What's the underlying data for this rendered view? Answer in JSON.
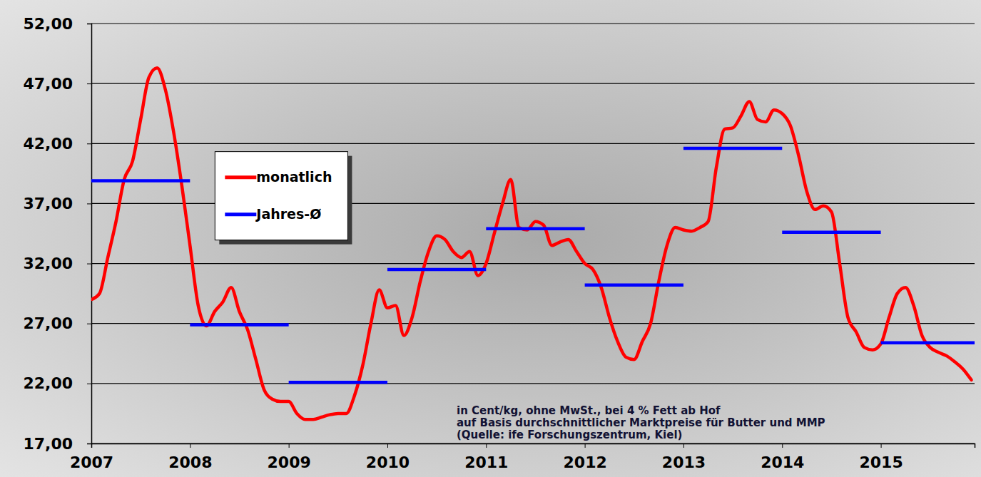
{
  "chart_data": {
    "type": "line",
    "annotations": [
      "in Cent/kg, ohne MwSt., bei 4 % Fett ab Hof",
      "auf Basis durchschnittlicher Marktpreise für Butter und MMP",
      "(Quelle: ife Forschungszentrum,  Kiel)"
    ],
    "xlim": [
      2007,
      2015.95
    ],
    "xticks": [
      2007,
      2008,
      2009,
      2010,
      2011,
      2012,
      2013,
      2014,
      2015
    ],
    "ylim": [
      17,
      52
    ],
    "yticks": [
      {
        "value": 17,
        "label": "17,00"
      },
      {
        "value": 22,
        "label": "22,00"
      },
      {
        "value": 27,
        "label": "27,00"
      },
      {
        "value": 32,
        "label": "32,00"
      },
      {
        "value": 37,
        "label": "37,00"
      },
      {
        "value": 42,
        "label": "42,00"
      },
      {
        "value": 47,
        "label": "47,00"
      },
      {
        "value": 52,
        "label": "52,00"
      }
    ],
    "grid": true,
    "legend": "upper left",
    "series": [
      {
        "name": "monatlich",
        "color": "#ff0000",
        "x": [
          2007,
          2007.083,
          2007.167,
          2007.25,
          2007.333,
          2007.417,
          2007.5,
          2007.583,
          2007.667,
          2007.75,
          2007.833,
          2007.917,
          2008,
          2008.083,
          2008.167,
          2008.25,
          2008.333,
          2008.417,
          2008.5,
          2008.583,
          2008.667,
          2008.75,
          2008.833,
          2008.917,
          2009,
          2009.083,
          2009.167,
          2009.25,
          2009.333,
          2009.417,
          2009.5,
          2009.583,
          2009.667,
          2009.75,
          2009.833,
          2009.917,
          2010,
          2010.083,
          2010.167,
          2010.25,
          2010.333,
          2010.417,
          2010.5,
          2010.583,
          2010.667,
          2010.75,
          2010.833,
          2010.917,
          2011,
          2011.083,
          2011.167,
          2011.25,
          2011.333,
          2011.417,
          2011.5,
          2011.583,
          2011.667,
          2011.75,
          2011.833,
          2011.917,
          2012,
          2012.083,
          2012.167,
          2012.25,
          2012.333,
          2012.417,
          2012.5,
          2012.583,
          2012.667,
          2012.75,
          2012.833,
          2012.917,
          2013,
          2013.083,
          2013.167,
          2013.25,
          2013.333,
          2013.417,
          2013.5,
          2013.583,
          2013.667,
          2013.75,
          2013.833,
          2013.917,
          2014,
          2014.083,
          2014.167,
          2014.25,
          2014.333,
          2014.417,
          2014.5,
          2014.583,
          2014.667,
          2014.75,
          2014.833,
          2014.917,
          2015,
          2015.083,
          2015.167,
          2015.25,
          2015.333,
          2015.417,
          2015.5,
          2015.583,
          2015.667,
          2015.75,
          2015.833,
          2015.917
        ],
        "values": [
          29.0,
          29.5,
          32.5,
          35.5,
          39.0,
          40.5,
          44.0,
          47.5,
          48.3,
          46.5,
          43.0,
          38.5,
          33.5,
          28.5,
          26.8,
          28.0,
          28.8,
          30.0,
          28.0,
          26.5,
          24.0,
          21.5,
          20.7,
          20.5,
          20.5,
          19.5,
          19.0,
          19.0,
          19.2,
          19.4,
          19.5,
          19.5,
          21.0,
          23.5,
          27.0,
          29.8,
          28.3,
          28.5,
          26.0,
          27.5,
          30.5,
          33.0,
          34.3,
          34.0,
          33.0,
          32.5,
          33.0,
          31.0,
          32.0,
          34.5,
          37.0,
          39.0,
          35.0,
          34.8,
          35.5,
          35.2,
          33.5,
          33.8,
          34.0,
          33.0,
          32.0,
          31.5,
          30.0,
          27.5,
          25.5,
          24.2,
          24.0,
          25.5,
          27.0,
          30.5,
          33.5,
          35.0,
          34.8,
          34.7,
          35.0,
          35.5,
          40.0,
          43.2,
          43.3,
          44.3,
          45.5,
          44.0,
          43.8,
          44.8,
          44.5,
          43.5,
          41.0,
          38.0,
          36.5,
          36.8,
          36.3,
          32.0,
          27.5,
          26.3,
          25.0,
          24.8,
          25.3,
          27.5,
          29.5,
          30.0,
          28.5,
          26.0,
          25.0,
          24.6,
          24.3,
          23.8,
          23.2,
          22.3
        ]
      },
      {
        "name": "Jahres-Ø",
        "color": "#0000ff",
        "type": "segment",
        "x": [
          2007,
          2008,
          2009,
          2010,
          2011,
          2012,
          2013,
          2014,
          2015
        ],
        "values": [
          38.9,
          26.9,
          22.1,
          31.5,
          34.9,
          30.2,
          41.6,
          34.6,
          25.4
        ]
      }
    ]
  }
}
